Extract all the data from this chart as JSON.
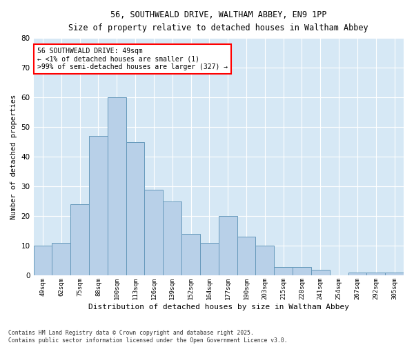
{
  "title1": "56, SOUTHWEALD DRIVE, WALTHAM ABBEY, EN9 1PP",
  "title2": "Size of property relative to detached houses in Waltham Abbey",
  "xlabel": "Distribution of detached houses by size in Waltham Abbey",
  "ylabel": "Number of detached properties",
  "categories": [
    "49sqm",
    "62sqm",
    "75sqm",
    "88sqm",
    "100sqm",
    "113sqm",
    "126sqm",
    "139sqm",
    "152sqm",
    "164sqm",
    "177sqm",
    "190sqm",
    "203sqm",
    "215sqm",
    "228sqm",
    "241sqm",
    "254sqm",
    "267sqm",
    "292sqm",
    "305sqm"
  ],
  "values": [
    10,
    11,
    24,
    47,
    60,
    45,
    29,
    25,
    14,
    11,
    20,
    13,
    10,
    3,
    3,
    2,
    0,
    1,
    1,
    1
  ],
  "bar_color": "#b8d0e8",
  "bar_edge_color": "#6699bb",
  "background_color": "#d6e8f5",
  "grid_color": "#ffffff",
  "annotation_title": "56 SOUTHWEALD DRIVE: 49sqm",
  "annotation_line1": "← <1% of detached houses are smaller (1)",
  "annotation_line2": ">99% of semi-detached houses are larger (327) →",
  "footnote": "Contains HM Land Registry data © Crown copyright and database right 2025.\nContains public sector information licensed under the Open Government Licence v3.0.",
  "ylim": [
    0,
    80
  ],
  "yticks": [
    0,
    10,
    20,
    30,
    40,
    50,
    60,
    70,
    80
  ],
  "fig_width": 6.0,
  "fig_height": 5.0,
  "dpi": 100
}
